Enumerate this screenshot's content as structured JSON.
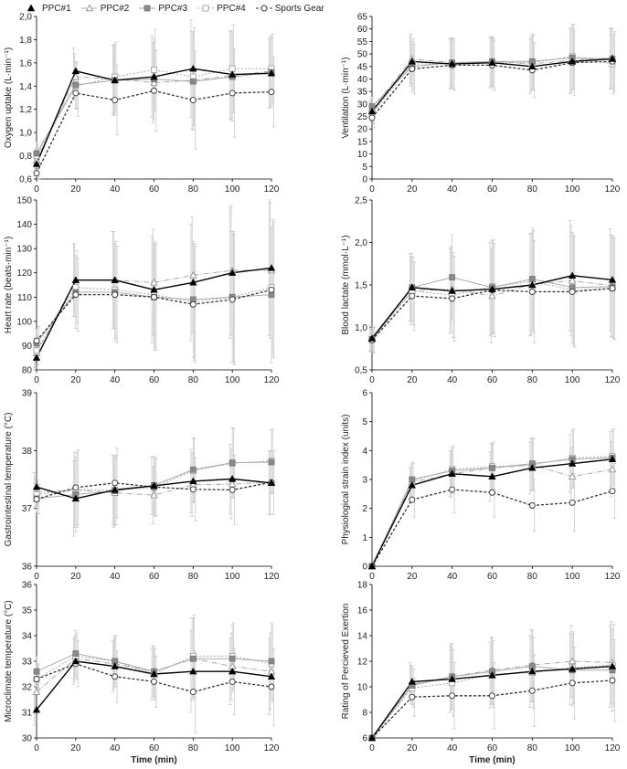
{
  "legend": [
    {
      "name": "PPC#1",
      "marker": "filled-triangle",
      "color": "#000000",
      "line": "solid"
    },
    {
      "name": "PPC#2",
      "marker": "open-triangle",
      "color": "#999999",
      "line": "dashdot"
    },
    {
      "name": "PPC#3",
      "marker": "filled-square",
      "color": "#8a8a8a",
      "line": "solid-gray"
    },
    {
      "name": "PPC#4",
      "marker": "open-square",
      "color": "#aaaaaa",
      "line": "dotted-gray"
    },
    {
      "name": "Sports Gear",
      "marker": "open-circle",
      "color": "#333333",
      "line": "dotted-dark"
    }
  ],
  "chart_data": [
    {
      "type": "line",
      "ylabel": "Oxygen uptake (L·min⁻¹)",
      "xlabel": "",
      "ylim": [
        0.6,
        2.0
      ],
      "yticks": [
        "0,6",
        "0,8",
        "1,0",
        "1,2",
        "1,4",
        "1,6",
        "1,8",
        "2,0"
      ],
      "x": [
        0,
        20,
        40,
        60,
        80,
        100,
        120
      ],
      "xticks": [
        "0",
        "20",
        "40",
        "60",
        "80",
        "100",
        "120"
      ],
      "series": [
        {
          "name": "PPC#1",
          "values": [
            0.73,
            1.53,
            1.45,
            1.48,
            1.55,
            1.5,
            1.51
          ]
        },
        {
          "name": "PPC#2",
          "values": [
            0.76,
            1.48,
            1.46,
            1.43,
            1.45,
            1.49,
            1.53
          ]
        },
        {
          "name": "PPC#3",
          "values": [
            0.82,
            1.41,
            1.45,
            1.46,
            1.44,
            1.48,
            1.52
          ]
        },
        {
          "name": "PPC#4",
          "values": [
            0.8,
            1.4,
            1.48,
            1.54,
            1.48,
            1.55,
            1.55
          ]
        },
        {
          "name": "Sports Gear",
          "values": [
            0.65,
            1.34,
            1.28,
            1.36,
            1.28,
            1.34,
            1.35
          ]
        }
      ],
      "errors": [
        0.1,
        0.2,
        0.3,
        0.35,
        0.42,
        0.38,
        0.3
      ]
    },
    {
      "type": "line",
      "ylabel": "Ventilation (L·min⁻¹)",
      "xlabel": "",
      "ylim": [
        0,
        65
      ],
      "yticks": [
        "0",
        "5",
        "10",
        "15",
        "20",
        "25",
        "30",
        "35",
        "40",
        "45",
        "50",
        "55",
        "60",
        "65"
      ],
      "x": [
        0,
        20,
        40,
        60,
        80,
        100,
        120
      ],
      "xticks": [
        "0",
        "20",
        "40",
        "60",
        "80",
        "100",
        "120"
      ],
      "series": [
        {
          "name": "PPC#1",
          "values": [
            27,
            47,
            46,
            46.5,
            45,
            47,
            48
          ]
        },
        {
          "name": "PPC#2",
          "values": [
            28,
            48,
            46.5,
            47,
            46,
            47.5,
            48.5
          ]
        },
        {
          "name": "PPC#3",
          "values": [
            29,
            45,
            46.5,
            47,
            47,
            48.5,
            48
          ]
        },
        {
          "name": "PPC#4",
          "values": [
            26,
            46,
            46,
            46.5,
            46.5,
            49,
            46
          ]
        },
        {
          "name": "Sports Gear",
          "values": [
            24.5,
            44,
            45.5,
            45.5,
            43.5,
            46.5,
            47
          ]
        }
      ],
      "errors": [
        4,
        10,
        10,
        10,
        11,
        13,
        12
      ]
    },
    {
      "type": "line",
      "ylabel": "Heart rate (beats·min⁻¹)",
      "xlabel": "",
      "ylim": [
        80,
        150
      ],
      "yticks": [
        "80",
        "90",
        "100",
        "110",
        "120",
        "130",
        "140",
        "150"
      ],
      "x": [
        0,
        20,
        40,
        60,
        80,
        100,
        120
      ],
      "xticks": [
        "0",
        "20",
        "40",
        "60",
        "80",
        "100",
        "120"
      ],
      "series": [
        {
          "name": "PPC#1",
          "values": [
            85,
            117,
            117,
            113,
            116,
            120,
            122
          ]
        },
        {
          "name": "PPC#2",
          "values": [
            87,
            117,
            117,
            116,
            119,
            121,
            121
          ]
        },
        {
          "name": "PPC#3",
          "values": [
            91,
            112,
            112,
            110,
            109,
            110,
            111
          ]
        },
        {
          "name": "PPC#4",
          "values": [
            88,
            114,
            113,
            111,
            108,
            110,
            114
          ]
        },
        {
          "name": "Sports Gear",
          "values": [
            92,
            111,
            111,
            110,
            107,
            109,
            113
          ]
        }
      ],
      "errors": [
        6,
        15,
        20,
        22,
        24,
        27,
        28
      ]
    },
    {
      "type": "line",
      "ylabel": "Blood lactate (mmol·L⁻¹)",
      "xlabel": "",
      "ylim": [
        0.5,
        2.5
      ],
      "yticks": [
        "0,5",
        "1,0",
        "1,5",
        "2,0",
        "2,5"
      ],
      "x": [
        0,
        20,
        40,
        60,
        80,
        100,
        120
      ],
      "xticks": [
        "0",
        "20",
        "40",
        "60",
        "80",
        "100",
        "120"
      ],
      "series": [
        {
          "name": "PPC#1",
          "values": [
            0.87,
            1.47,
            1.43,
            1.45,
            1.5,
            1.61,
            1.56
          ]
        },
        {
          "name": "PPC#2",
          "values": [
            0.86,
            1.43,
            1.45,
            1.37,
            1.51,
            1.55,
            1.49
          ]
        },
        {
          "name": "PPC#3",
          "values": [
            0.86,
            1.47,
            1.59,
            1.47,
            1.57,
            1.47,
            1.48
          ]
        },
        {
          "name": "PPC#4",
          "values": [
            0.86,
            1.43,
            1.38,
            1.48,
            1.54,
            1.44,
            1.46
          ]
        },
        {
          "name": "Sports Gear",
          "values": [
            0.85,
            1.37,
            1.34,
            1.44,
            1.42,
            1.42,
            1.46
          ]
        }
      ],
      "errors": [
        0.15,
        0.4,
        0.5,
        0.55,
        0.6,
        0.65,
        0.6
      ]
    },
    {
      "type": "line",
      "ylabel": "Gastrointestinal temperature (°C)",
      "xlabel": "",
      "ylim": [
        36,
        39
      ],
      "yticks": [
        "36",
        "37",
        "38",
        "39"
      ],
      "x": [
        0,
        20,
        40,
        60,
        80,
        100,
        120
      ],
      "xticks": [
        "0",
        "20",
        "40",
        "60",
        "80",
        "100",
        "120"
      ],
      "series": [
        {
          "name": "PPC#1",
          "values": [
            37.37,
            37.17,
            37.32,
            37.39,
            37.47,
            37.51,
            37.44
          ]
        },
        {
          "name": "PPC#2",
          "values": [
            37.28,
            37.32,
            37.27,
            37.23,
            37.41,
            37.42,
            37.45
          ]
        },
        {
          "name": "PPC#3",
          "values": [
            37.17,
            37.24,
            37.3,
            37.4,
            37.67,
            37.79,
            37.8
          ]
        },
        {
          "name": "PPC#4",
          "values": [
            37.24,
            37.32,
            37.32,
            37.36,
            37.65,
            37.78,
            37.82
          ]
        },
        {
          "name": "Sports Gear",
          "values": [
            37.16,
            37.36,
            37.44,
            37.37,
            37.33,
            37.32,
            37.45
          ]
        }
      ],
      "errors": [
        0.25,
        0.65,
        0.6,
        0.5,
        0.55,
        0.6,
        0.55
      ]
    },
    {
      "type": "line",
      "ylabel": "Physiological strain index (units)",
      "xlabel": "",
      "ylim": [
        0,
        6
      ],
      "yticks": [
        "0",
        "1",
        "2",
        "3",
        "4",
        "5",
        "6"
      ],
      "x": [
        0,
        20,
        40,
        60,
        80,
        100,
        120
      ],
      "xticks": [
        "0",
        "20",
        "40",
        "60",
        "80",
        "100",
        "120"
      ],
      "series": [
        {
          "name": "PPC#1",
          "values": [
            0,
            2.8,
            3.2,
            3.1,
            3.4,
            3.55,
            3.7
          ]
        },
        {
          "name": "PPC#2",
          "values": [
            0,
            2.9,
            3.2,
            3.4,
            3.5,
            3.1,
            3.35
          ]
        },
        {
          "name": "PPC#3",
          "values": [
            0,
            3.0,
            3.3,
            3.4,
            3.55,
            3.7,
            3.75
          ]
        },
        {
          "name": "PPC#4",
          "values": [
            0,
            2.95,
            3.35,
            3.45,
            3.5,
            3.75,
            3.8
          ]
        },
        {
          "name": "Sports Gear",
          "values": [
            0,
            2.3,
            2.65,
            2.55,
            2.1,
            2.2,
            2.6
          ]
        }
      ],
      "errors": [
        0,
        0.6,
        0.8,
        0.85,
        0.9,
        1.0,
        0.95
      ]
    },
    {
      "type": "line",
      "ylabel": "Microclimate temperature (°C)",
      "xlabel": "Time (min)",
      "ylim": [
        30,
        36
      ],
      "yticks": [
        "30",
        "31",
        "32",
        "33",
        "34",
        "35",
        "36"
      ],
      "x": [
        0,
        20,
        40,
        60,
        80,
        100,
        120
      ],
      "xticks": [
        "0",
        "20",
        "40",
        "60",
        "80",
        "100",
        "120"
      ],
      "series": [
        {
          "name": "PPC#1",
          "values": [
            31.1,
            33.0,
            32.8,
            32.5,
            32.6,
            32.6,
            32.4
          ]
        },
        {
          "name": "PPC#2",
          "values": [
            31.8,
            33.1,
            32.9,
            32.6,
            33.1,
            32.8,
            32.6
          ]
        },
        {
          "name": "PPC#3",
          "values": [
            32.6,
            33.3,
            33.0,
            32.6,
            33.1,
            33.1,
            33.0
          ]
        },
        {
          "name": "PPC#4",
          "values": [
            32.3,
            33.2,
            33.0,
            32.5,
            33.2,
            33.2,
            32.9
          ]
        },
        {
          "name": "Sports Gear",
          "values": [
            32.3,
            32.9,
            32.4,
            32.2,
            31.8,
            32.2,
            32.0
          ]
        }
      ],
      "errors": [
        0.6,
        0.9,
        1.0,
        1.0,
        1.6,
        1.3,
        1.5
      ]
    },
    {
      "type": "line",
      "ylabel": "Rating of Percieved Exertion",
      "xlabel": "Time (min)",
      "ylim": [
        6,
        18
      ],
      "yticks": [
        "6",
        "8",
        "10",
        "12",
        "14",
        "16",
        "18"
      ],
      "x": [
        0,
        20,
        40,
        60,
        80,
        100,
        120
      ],
      "xticks": [
        "0",
        "20",
        "40",
        "60",
        "80",
        "100",
        "120"
      ],
      "series": [
        {
          "name": "PPC#1",
          "values": [
            6,
            10.4,
            10.6,
            10.9,
            11.2,
            11.4,
            11.6
          ]
        },
        {
          "name": "PPC#2",
          "values": [
            6,
            10.2,
            10.8,
            11.3,
            11.7,
            12.0,
            11.9
          ]
        },
        {
          "name": "PPC#3",
          "values": [
            6,
            10.1,
            10.8,
            11.2,
            11.6,
            11.3,
            11.3
          ]
        },
        {
          "name": "PPC#4",
          "values": [
            6,
            9.9,
            10.3,
            11.0,
            11.1,
            11.5,
            11.7
          ]
        },
        {
          "name": "Sports Gear",
          "values": [
            6,
            9.2,
            9.3,
            9.3,
            9.7,
            10.3,
            10.5
          ]
        }
      ],
      "errors": [
        0,
        1.5,
        2.6,
        2.6,
        2.8,
        2.8,
        3.2
      ]
    }
  ]
}
